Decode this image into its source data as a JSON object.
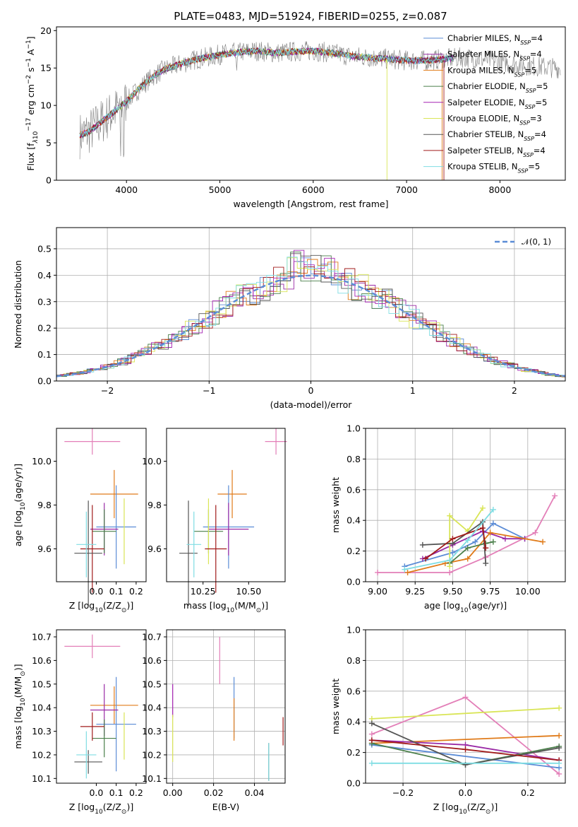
{
  "figure_title": "PLATE=0483, MJD=51924, FIBERID=0255, z=0.087",
  "colors": {
    "chabrier_miles": "#5b8cd6",
    "salpeter_miles": "#9a2aa6",
    "kroupa_miles": "#e07b1a",
    "chabrier_elodie": "#4a7f4a",
    "salpeter_elodie": "#a524b3",
    "kroupa_elodie": "#d9e556",
    "chabrier_stelib": "#555555",
    "salpeter_stelib": "#a11b1b",
    "kroupa_stelib": "#7fdde3",
    "spectrum": "#808080",
    "gauss": "#5b8cd6",
    "pink": "#e37fb8"
  },
  "chart_data": [
    {
      "id": "spectrum",
      "type": "line",
      "title": "PLATE=0483, MJD=51924, FIBERID=0255, z=0.087",
      "xlabel": "wavelength [Angstrom, rest frame]",
      "ylabel": "Flux [f",
      "ylabel_parts": [
        "λ",
        "10",
        "−17",
        " erg cm",
        "−2",
        " s",
        "−1",
        " A",
        "−1",
        "]"
      ],
      "xlim": [
        3250,
        8700
      ],
      "ylim": [
        0,
        20.5
      ],
      "xticks": [
        4000,
        5000,
        6000,
        7000,
        8000
      ],
      "yticks": [
        0,
        5,
        10,
        15,
        20
      ],
      "x": [
        3500,
        3600,
        3700,
        3800,
        3900,
        4000,
        4100,
        4200,
        4300,
        4400,
        4500,
        4600,
        4700,
        4800,
        4900,
        5000,
        5200,
        5400,
        5600,
        5800,
        6000,
        6200,
        6400,
        6600,
        6800,
        7000,
        7200,
        7400,
        7600,
        7800,
        8000,
        8200,
        8400,
        8600
      ],
      "y": [
        6.0,
        6.5,
        7.5,
        8.5,
        9.5,
        10.5,
        11.8,
        13.0,
        14.0,
        14.8,
        15.2,
        15.6,
        16.0,
        16.3,
        16.5,
        16.8,
        17.1,
        17.3,
        17.0,
        17.2,
        17.3,
        17.0,
        16.6,
        16.4,
        16.2,
        16.0,
        16.0,
        16.2,
        16.4,
        16.2,
        15.8,
        15.5,
        15.2,
        15.0
      ],
      "legend": [
        {
          "key": "chabrier_miles",
          "pre": "Chabrier MILES, N",
          "sub": "SSP",
          "post": "=4"
        },
        {
          "key": "salpeter_miles",
          "pre": "Salpeter MILES, N",
          "sub": "SSP",
          "post": "=4"
        },
        {
          "key": "kroupa_miles",
          "pre": "Kroupa MILES, N",
          "sub": "SSP",
          "post": "=5"
        },
        {
          "key": "chabrier_elodie",
          "pre": "Chabrier ELODIE, N",
          "sub": "SSP",
          "post": "=5"
        },
        {
          "key": "salpeter_elodie",
          "pre": "Salpeter ELODIE, N",
          "sub": "SSP",
          "post": "=5"
        },
        {
          "key": "kroupa_elodie",
          "pre": "Kroupa ELODIE, N",
          "sub": "SSP",
          "post": "=3"
        },
        {
          "key": "chabrier_stelib",
          "pre": "Chabrier STELIB, N",
          "sub": "SSP",
          "post": "=4"
        },
        {
          "key": "salpeter_stelib",
          "pre": "Salpeter STELIB, N",
          "sub": "SSP",
          "post": "=4"
        },
        {
          "key": "kroupa_stelib",
          "pre": "Kroupa STELIB, N",
          "sub": "SSP",
          "post": "=5"
        }
      ],
      "legend_position": "right"
    },
    {
      "id": "residuals",
      "type": "line",
      "xlabel": "(data-model)/error",
      "ylabel": "Normed distribution",
      "xlim": [
        -2.5,
        2.5
      ],
      "ylim": [
        0,
        0.58
      ],
      "xticks": [
        -2,
        -1,
        0,
        1,
        2
      ],
      "xtick_labels": [
        "−2",
        "−1",
        "0",
        "1",
        "2"
      ],
      "yticks": [
        0.0,
        0.1,
        0.2,
        0.3,
        0.4,
        0.5
      ],
      "ytick_labels": [
        "0.0",
        "0.1",
        "0.2",
        "0.3",
        "0.4",
        "0.5"
      ],
      "gauss_label": "𝒩(0, 1)",
      "legend_position": "top-right",
      "grid": true
    },
    {
      "id": "age_vs_Z",
      "type": "scatter",
      "xlabel": "Z [log",
      "xlabel_parts": [
        "10",
        "(Z/Z",
        "⊙",
        ")]"
      ],
      "ylabel": "age  [log",
      "ylabel_parts": [
        "10",
        "(age/yr)]"
      ],
      "xlim": [
        -0.2,
        0.25
      ],
      "ylim": [
        9.45,
        10.15
      ],
      "xticks": [
        0.0,
        0.1,
        0.2
      ],
      "xtick_labels": [
        "0.0",
        "0.1",
        "0.2"
      ],
      "yticks": [
        9.6,
        9.8,
        10.0
      ],
      "ytick_labels": [
        "9.6",
        "9.8",
        "10.0"
      ],
      "points": [
        {
          "key": "pink",
          "x": -0.02,
          "y": 10.09,
          "xerr": 0.14,
          "yerr": 0.06
        },
        {
          "key": "kroupa_miles",
          "x": 0.09,
          "y": 9.85,
          "xerr": 0.12,
          "yerr": 0.11
        },
        {
          "key": "chabrier_miles",
          "x": 0.1,
          "y": 9.7,
          "xerr": 0.1,
          "yerr": 0.19
        },
        {
          "key": "salpeter_miles",
          "x": 0.04,
          "y": 9.69,
          "xerr": 0.07,
          "yerr": 0.12
        },
        {
          "key": "chabrier_elodie",
          "x": 0.04,
          "y": 9.68,
          "xerr": 0.06,
          "yerr": 0.1
        },
        {
          "key": "kroupa_elodie",
          "x": 0.14,
          "y": 9.68,
          "xerr": 0.0,
          "yerr": 0.15
        },
        {
          "key": "salpeter_stelib",
          "x": -0.02,
          "y": 9.6,
          "xerr": 0.06,
          "yerr": 0.2
        },
        {
          "key": "chabrier_stelib",
          "x": -0.04,
          "y": 9.58,
          "xerr": 0.07,
          "yerr": 0.24
        },
        {
          "key": "kroupa_stelib",
          "x": -0.05,
          "y": 9.62,
          "xerr": 0.05,
          "yerr": 0.15
        }
      ]
    },
    {
      "id": "age_vs_mass",
      "type": "scatter",
      "xlabel": "mass [log",
      "xlabel_parts": [
        "10",
        "(M/M",
        "⊙",
        ")]"
      ],
      "xlim": [
        10.05,
        10.7
      ],
      "ylim": [
        9.45,
        10.15
      ],
      "xticks": [
        10.25,
        10.5
      ],
      "xtick_labels": [
        "10.25",
        "10.50"
      ],
      "yticks": [
        9.6,
        9.8,
        10.0
      ],
      "ytick_labels": [
        "9.6",
        "9.8",
        "10.0"
      ],
      "points": [
        {
          "key": "pink",
          "x": 10.65,
          "y": 10.09,
          "xerr": 0.06,
          "yerr": 0.06
        },
        {
          "key": "kroupa_miles",
          "x": 10.41,
          "y": 9.85,
          "xerr": 0.08,
          "yerr": 0.11
        },
        {
          "key": "chabrier_miles",
          "x": 10.39,
          "y": 9.7,
          "xerr": 0.14,
          "yerr": 0.19
        },
        {
          "key": "salpeter_miles",
          "x": 10.39,
          "y": 9.69,
          "xerr": 0.11,
          "yerr": 0.12
        },
        {
          "key": "chabrier_elodie",
          "x": 10.28,
          "y": 9.68,
          "xerr": 0.08,
          "yerr": 0.1
        },
        {
          "key": "kroupa_elodie",
          "x": 10.28,
          "y": 9.68,
          "xerr": 0.0,
          "yerr": 0.15
        },
        {
          "key": "salpeter_stelib",
          "x": 10.32,
          "y": 9.6,
          "xerr": 0.06,
          "yerr": 0.2
        },
        {
          "key": "chabrier_stelib",
          "x": 10.17,
          "y": 9.58,
          "xerr": 0.05,
          "yerr": 0.24
        },
        {
          "key": "kroupa_stelib",
          "x": 10.2,
          "y": 9.62,
          "xerr": 0.04,
          "yerr": 0.15
        }
      ]
    },
    {
      "id": "weight_vs_age",
      "type": "line",
      "xlabel": "age  [log",
      "xlabel_parts": [
        "10",
        "(age/yr)]"
      ],
      "ylabel": "mass weight",
      "xlim": [
        8.92,
        10.25
      ],
      "ylim": [
        0,
        1
      ],
      "xticks": [
        9.0,
        9.25,
        9.5,
        9.75,
        10.0
      ],
      "xtick_labels": [
        "9.00",
        "9.25",
        "9.50",
        "9.75",
        "10.00"
      ],
      "yticks": [
        0.0,
        0.2,
        0.4,
        0.6,
        0.8,
        1.0
      ],
      "ytick_labels": [
        "0.0",
        "0.2",
        "0.4",
        "0.6",
        "0.8",
        "1.0"
      ],
      "series": [
        {
          "key": "pink",
          "x": [
            9.0,
            9.48,
            9.72,
            10.05,
            10.18
          ],
          "y": [
            0.06,
            0.06,
            0.16,
            0.32,
            0.56
          ]
        },
        {
          "key": "chabrier_miles",
          "x": [
            9.18,
            9.5,
            9.65,
            9.77,
            9.98
          ],
          "y": [
            0.1,
            0.19,
            0.26,
            0.38,
            0.28
          ]
        },
        {
          "key": "salpeter_miles",
          "x": [
            9.3,
            9.5,
            9.7,
            9.85,
            9.98
          ],
          "y": [
            0.15,
            0.24,
            0.33,
            0.28,
            0.28
          ]
        },
        {
          "key": "kroupa_miles",
          "x": [
            9.2,
            9.45,
            9.6,
            9.75,
            10.1
          ],
          "y": [
            0.06,
            0.12,
            0.15,
            0.32,
            0.26
          ]
        },
        {
          "key": "chabrier_elodie",
          "x": [
            9.48,
            9.6,
            9.72,
            9.77
          ],
          "y": [
            0.12,
            0.22,
            0.25,
            0.26
          ]
        },
        {
          "key": "kroupa_elodie",
          "x": [
            9.48,
            9.48,
            9.6,
            9.7
          ],
          "y": [
            0.1,
            0.43,
            0.33,
            0.48
          ]
        },
        {
          "key": "chabrier_stelib",
          "x": [
            9.3,
            9.5,
            9.7,
            9.72
          ],
          "y": [
            0.24,
            0.25,
            0.39,
            0.12
          ]
        },
        {
          "key": "salpeter_stelib",
          "x": [
            9.32,
            9.5,
            9.7,
            9.72
          ],
          "y": [
            0.15,
            0.28,
            0.35,
            0.22
          ]
        },
        {
          "key": "kroupa_stelib",
          "x": [
            9.18,
            9.48,
            9.6,
            9.77
          ],
          "y": [
            0.08,
            0.14,
            0.27,
            0.47
          ]
        }
      ],
      "grid": true
    },
    {
      "id": "mass_vs_Z",
      "type": "scatter",
      "xlabel": "Z [log",
      "xlabel_parts": [
        "10",
        "(Z/Z",
        "⊙",
        ")]"
      ],
      "ylabel": "mass [log",
      "ylabel_parts": [
        "10",
        "(M/M",
        "⊙",
        ")]"
      ],
      "xlim": [
        -0.2,
        0.25
      ],
      "ylim": [
        10.08,
        10.73
      ],
      "xticks": [
        0.0,
        0.1,
        0.2
      ],
      "xtick_labels": [
        "0.0",
        "0.1",
        "0.2"
      ],
      "yticks": [
        10.1,
        10.2,
        10.3,
        10.4,
        10.5,
        10.6,
        10.7
      ],
      "ytick_labels": [
        "10.1",
        "10.2",
        "10.3",
        "10.4",
        "10.5",
        "10.6",
        "10.7"
      ],
      "points": [
        {
          "key": "pink",
          "x": -0.02,
          "y": 10.66,
          "xerr": 0.14,
          "yerr": 0.05
        },
        {
          "key": "kroupa_miles",
          "x": 0.09,
          "y": 10.41,
          "xerr": 0.12,
          "yerr": 0.08
        },
        {
          "key": "chabrier_miles",
          "x": 0.1,
          "y": 10.33,
          "xerr": 0.1,
          "yerr": 0.2
        },
        {
          "key": "salpeter_miles",
          "x": 0.04,
          "y": 10.39,
          "xerr": 0.07,
          "yerr": 0.11
        },
        {
          "key": "chabrier_elodie",
          "x": 0.04,
          "y": 10.27,
          "xerr": 0.06,
          "yerr": 0.08
        },
        {
          "key": "kroupa_elodie",
          "x": 0.14,
          "y": 10.28,
          "xerr": 0.0,
          "yerr": 0.1
        },
        {
          "key": "salpeter_stelib",
          "x": -0.02,
          "y": 10.32,
          "xerr": 0.06,
          "yerr": 0.06
        },
        {
          "key": "chabrier_stelib",
          "x": -0.04,
          "y": 10.17,
          "xerr": 0.07,
          "yerr": 0.05
        },
        {
          "key": "kroupa_stelib",
          "x": -0.05,
          "y": 10.2,
          "xerr": 0.05,
          "yerr": 0.1
        }
      ]
    },
    {
      "id": "mass_vs_ebv",
      "type": "scatter",
      "xlabel": "E(B-V)",
      "xlim": [
        -0.003,
        0.055
      ],
      "ylim": [
        10.08,
        10.73
      ],
      "xticks": [
        0.0,
        0.02,
        0.04
      ],
      "xtick_labels": [
        "0.00",
        "0.02",
        "0.04"
      ],
      "yticks": [
        10.1,
        10.2,
        10.3,
        10.4,
        10.5,
        10.6,
        10.7
      ],
      "ytick_labels": [
        "10.1",
        "10.2",
        "10.3",
        "10.4",
        "10.5",
        "10.6",
        "10.7"
      ],
      "points": [
        {
          "key": "pink",
          "x": 0.023,
          "y": 10.6,
          "xerr": 0,
          "yerr": 0.1
        },
        {
          "key": "chabrier_miles",
          "x": 0.03,
          "y": 10.4,
          "xerr": 0,
          "yerr": 0.13
        },
        {
          "key": "kroupa_miles",
          "x": 0.03,
          "y": 10.35,
          "xerr": 0,
          "yerr": 0.09
        },
        {
          "key": "salpeter_elodie",
          "x": 0.0,
          "y": 10.43,
          "xerr": 0,
          "yerr": 0.07
        },
        {
          "key": "kroupa_elodie",
          "x": 0.0,
          "y": 10.27,
          "xerr": 0,
          "yerr": 0.1
        },
        {
          "key": "chabrier_stelib",
          "x": 0.047,
          "y": 10.17,
          "xerr": 0,
          "yerr": 0.08
        },
        {
          "key": "kroupa_stelib",
          "x": 0.047,
          "y": 10.17,
          "xerr": 0,
          "yerr": 0.08
        },
        {
          "key": "salpeter_stelib",
          "x": 0.054,
          "y": 10.3,
          "xerr": 0,
          "yerr": 0.06
        }
      ],
      "grid": true
    },
    {
      "id": "weight_vs_Z",
      "type": "line",
      "xlabel": "Z [log",
      "xlabel_parts": [
        "10",
        "(Z/Z",
        "⊙",
        ")]"
      ],
      "ylabel": "mass weight",
      "xlim": [
        -0.32,
        0.32
      ],
      "ylim": [
        0,
        1
      ],
      "xticks": [
        -0.2,
        0.0,
        0.2
      ],
      "xtick_labels": [
        "−0.2",
        "0.0",
        "0.2"
      ],
      "yticks": [
        0.0,
        0.2,
        0.4,
        0.6,
        0.8,
        1.0
      ],
      "ytick_labels": [
        "0.0",
        "0.2",
        "0.4",
        "0.6",
        "0.8",
        "1.0"
      ],
      "series": [
        {
          "key": "pink",
          "x": [
            -0.3,
            0.0,
            0.3
          ],
          "y": [
            0.32,
            0.56,
            0.06
          ]
        },
        {
          "key": "kroupa_elodie",
          "x": [
            -0.3,
            0.3
          ],
          "y": [
            0.42,
            0.49
          ]
        },
        {
          "key": "kroupa_miles",
          "x": [
            -0.3,
            0.3
          ],
          "y": [
            0.26,
            0.31
          ]
        },
        {
          "key": "chabrier_miles",
          "x": [
            -0.3,
            0.3
          ],
          "y": [
            0.25,
            0.1
          ]
        },
        {
          "key": "salpeter_miles",
          "x": [
            -0.3,
            0.0,
            0.3
          ],
          "y": [
            0.28,
            0.25,
            0.15
          ]
        },
        {
          "key": "chabrier_elodie",
          "x": [
            -0.3,
            0.0,
            0.3
          ],
          "y": [
            0.26,
            0.12,
            0.24
          ]
        },
        {
          "key": "chabrier_stelib",
          "x": [
            -0.3,
            0.0,
            0.3
          ],
          "y": [
            0.39,
            0.12,
            0.23
          ]
        },
        {
          "key": "salpeter_stelib",
          "x": [
            -0.3,
            0.0,
            0.3
          ],
          "y": [
            0.28,
            0.22,
            0.15
          ]
        },
        {
          "key": "kroupa_stelib",
          "x": [
            -0.3,
            0.3
          ],
          "y": [
            0.13,
            0.13
          ]
        }
      ],
      "grid": true
    }
  ]
}
